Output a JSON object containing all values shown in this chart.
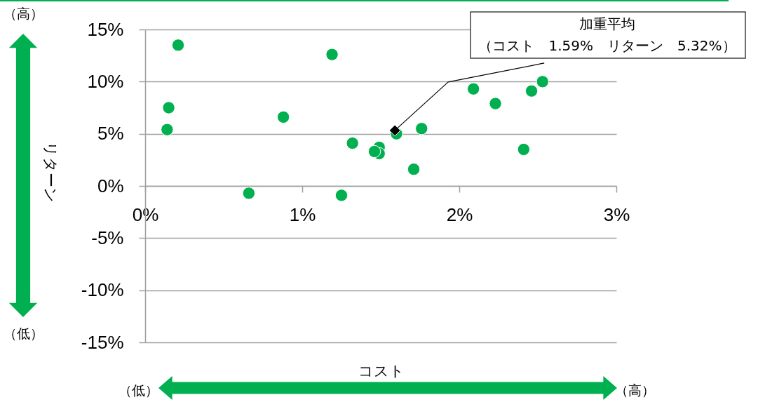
{
  "chart_data": {
    "type": "scatter",
    "xlabel": "コスト",
    "ylabel": "リターン",
    "marker": "circle",
    "grid": "y",
    "xlim": [
      0,
      3
    ],
    "xticks": [
      {
        "value": 0,
        "label": "0%"
      },
      {
        "value": 1,
        "label": "1%"
      },
      {
        "value": 2,
        "label": "2%"
      },
      {
        "value": 3,
        "label": "3%"
      }
    ],
    "ylim": [
      -15,
      15
    ],
    "yticks": [
      {
        "value": -15,
        "label": "-15%"
      },
      {
        "value": -10,
        "label": "-10%"
      },
      {
        "value": -5,
        "label": "-5%"
      },
      {
        "value": 0,
        "label": "0%"
      },
      {
        "value": 5,
        "label": "5%"
      },
      {
        "value": 10,
        "label": "10%"
      },
      {
        "value": 15,
        "label": "15%"
      }
    ],
    "series": [
      {
        "color": "#00b050",
        "x": [
          0.21,
          1.19,
          0.15,
          0.14,
          0.88,
          1.32,
          0.66,
          1.25,
          1.49,
          1.49,
          1.46,
          1.6,
          1.76,
          1.71,
          2.09,
          2.23,
          2.41,
          2.46,
          2.53
        ],
        "values": [
          13.5,
          12.6,
          7.5,
          5.4,
          6.6,
          4.1,
          -0.7,
          -0.9,
          3.7,
          3.1,
          3.3,
          5.0,
          5.5,
          1.6,
          9.3,
          7.9,
          3.5,
          9.1,
          10.0
        ]
      },
      {
        "color": "#000000",
        "marker": "diamond",
        "x": [
          1.59
        ],
        "values": [
          5.32
        ]
      }
    ],
    "annotations": [
      "加重平均",
      {
        "text": "（コスト　1.59%　リターン　5.32%）",
        "x": 1.59,
        "y": 5.32
      },
      "（高）",
      "（低）",
      "（低）",
      "（高）"
    ]
  }
}
